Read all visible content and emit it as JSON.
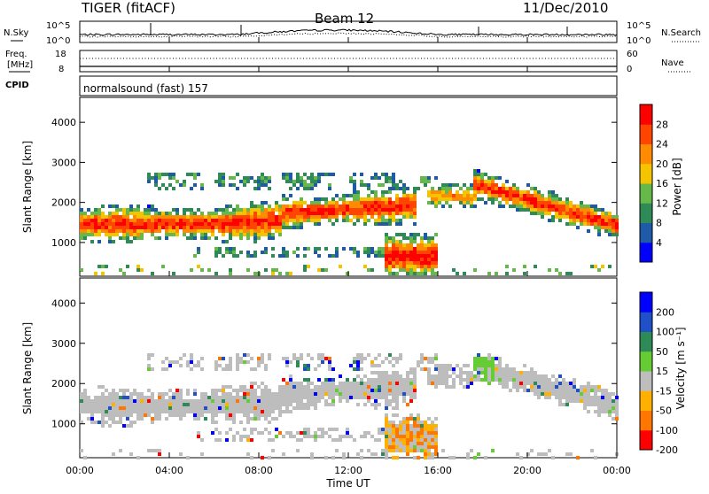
{
  "header": {
    "radar": "TIGER (fitACF)",
    "beam": "Beam 12",
    "date": "11/Dec/2010"
  },
  "left_labels": {
    "nsky": "N.Sky",
    "freq_line1": "Freq.",
    "freq_line2": "[MHz]",
    "cpid": "CPID"
  },
  "right_labels": {
    "nsearch": "N.Search",
    "nave": "Nave"
  },
  "mode_text": "normalsound (fast) 157",
  "colors": {
    "power_scale": [
      "#0000ff",
      "#1e5aa8",
      "#2e8b57",
      "#66b84a",
      "#f5c400",
      "#ff8c00",
      "#ff4500",
      "#ff0000"
    ],
    "velocity_scale": [
      "#0000ff",
      "#2050c8",
      "#2e8b57",
      "#66cc33",
      "#bdbdbd",
      "#ffb000",
      "#ff7700",
      "#ff0000"
    ],
    "ground_scatter": "#bdbdbd"
  },
  "chart_data": [
    {
      "type": "line",
      "name": "noise",
      "y_ticks": [
        "10^5",
        "10^0"
      ],
      "y_ticks_right": [
        "10^5",
        "10^0"
      ],
      "series": [
        {
          "name": "N.Sky",
          "style": "solid"
        },
        {
          "name": "N.Search",
          "style": "dotted"
        }
      ]
    },
    {
      "type": "line",
      "name": "freq_nave",
      "y_ticks_left": [
        "18",
        "8"
      ],
      "y_ticks_right": [
        "60",
        "0"
      ],
      "series": [
        {
          "name": "Freq.",
          "style": "solid"
        },
        {
          "name": "Nave",
          "style": "dotted"
        }
      ]
    },
    {
      "type": "heatmap",
      "name": "power",
      "ylabel": "Slant Range [km]",
      "y_ticks": [
        "1000",
        "2000",
        "3000",
        "4000"
      ],
      "colorbar_label": "Power [dB]",
      "colorbar_ticks": [
        "4",
        "8",
        "12",
        "16",
        "20",
        "24",
        "28"
      ],
      "ylim": [
        180,
        4600
      ]
    },
    {
      "type": "heatmap",
      "name": "velocity",
      "ylabel": "Slant Range [km]",
      "y_ticks": [
        "1000",
        "2000",
        "3000",
        "4000"
      ],
      "colorbar_label": "Velocity [m s⁻¹]",
      "colorbar_ticks": [
        "200",
        "100",
        "50",
        "15",
        "-15",
        "-50",
        "-100",
        "-200"
      ],
      "ylim": [
        180,
        4600
      ]
    }
  ],
  "x_axis": {
    "ticks": [
      "00:00",
      "04:00",
      "08:00",
      "12:00",
      "16:00",
      "20:00",
      "00:00"
    ],
    "label": "Time UT"
  }
}
